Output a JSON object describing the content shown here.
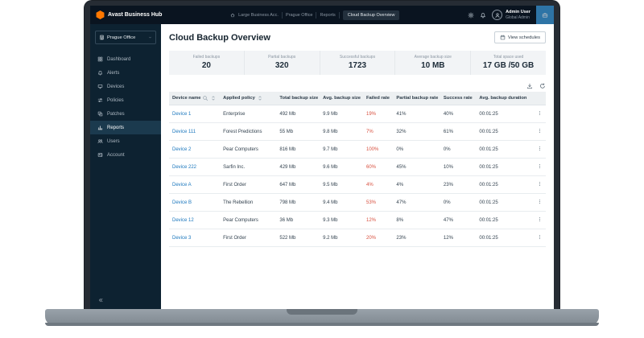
{
  "topbar": {
    "logo_text": "Avast Business Hub",
    "breadcrumbs": [
      "Large Business Acc.",
      "Prague Office",
      "Reports",
      "Cloud Backup Overview"
    ],
    "user": {
      "name": "Admin User",
      "role": "Global Admin"
    }
  },
  "sidebar": {
    "site_selector": "Prague Office",
    "active": "Reports",
    "items": [
      {
        "label": "Dashboard",
        "icon": "dashboard-icon"
      },
      {
        "label": "Alerts",
        "icon": "bell-icon"
      },
      {
        "label": "Devices",
        "icon": "monitor-icon"
      },
      {
        "label": "Policies",
        "icon": "sliders-icon"
      },
      {
        "label": "Patches",
        "icon": "patches-icon"
      },
      {
        "label": "Reports",
        "icon": "reports-icon"
      },
      {
        "label": "Users",
        "icon": "users-icon"
      },
      {
        "label": "Account",
        "icon": "account-icon"
      }
    ]
  },
  "page": {
    "title": "Cloud Backup Overview",
    "view_schedules_label": "View schedules"
  },
  "stats": [
    {
      "label": "Failed backups",
      "value": "20"
    },
    {
      "label": "Partial backups",
      "value": "320"
    },
    {
      "label": "Successful backups",
      "value": "1723"
    },
    {
      "label": "Average backup size",
      "value": "10 MB"
    },
    {
      "label": "Total space used",
      "value": "17 GB /50 GB"
    }
  ],
  "table": {
    "columns": [
      "Device name",
      "Applied policy",
      "Total backup size",
      "Avg. backup size",
      "Failed rate",
      "Partial backup rate",
      "Success rate",
      "Avg. backup duration"
    ],
    "rows": [
      {
        "device": "Device 1",
        "policy": "Enterprise",
        "total": "492 Mb",
        "avg": "9.9 Mb",
        "failed": "19%",
        "partial": "41%",
        "success": "40%",
        "duration": "00:01:25"
      },
      {
        "device": "Device 111",
        "policy": "Forest Predictions",
        "total": "55 Mb",
        "avg": "9.8 Mb",
        "failed": "7%",
        "partial": "32%",
        "success": "61%",
        "duration": "00:01:25"
      },
      {
        "device": "Device 2",
        "policy": "Pear Computers",
        "total": "816 Mb",
        "avg": "9.7 Mb",
        "failed": "100%",
        "partial": "0%",
        "success": "0%",
        "duration": "00:01:25"
      },
      {
        "device": "Device 222",
        "policy": "Sarfin Inc.",
        "total": "429 Mb",
        "avg": "9.6 Mb",
        "failed": "60%",
        "partial": "45%",
        "success": "10%",
        "duration": "00:01:25"
      },
      {
        "device": "Device A",
        "policy": "First Order",
        "total": "647 Mb",
        "avg": "9.5 Mb",
        "failed": "4%",
        "partial": "4%",
        "success": "23%",
        "duration": "00:01:25"
      },
      {
        "device": "Device B",
        "policy": "The Rebellion",
        "total": "798 Mb",
        "avg": "9.4 Mb",
        "failed": "53%",
        "partial": "47%",
        "success": "0%",
        "duration": "00:01:25"
      },
      {
        "device": "Device 12",
        "policy": "Pear Computers",
        "total": "36 Mb",
        "avg": "9.3 Mb",
        "failed": "12%",
        "partial": "8%",
        "success": "47%",
        "duration": "00:01:25"
      },
      {
        "device": "Device 3",
        "policy": "First Order",
        "total": "522 Mb",
        "avg": "9.2 Mb",
        "failed": "20%",
        "partial": "23%",
        "success": "12%",
        "duration": "00:01:25"
      }
    ]
  },
  "colors": {
    "accent_orange": "#ff7800",
    "link_blue": "#1b77bd",
    "failed_red": "#d8503f",
    "topbar_bg": "#0a1420",
    "sidebar_bg": "#0d2231"
  }
}
